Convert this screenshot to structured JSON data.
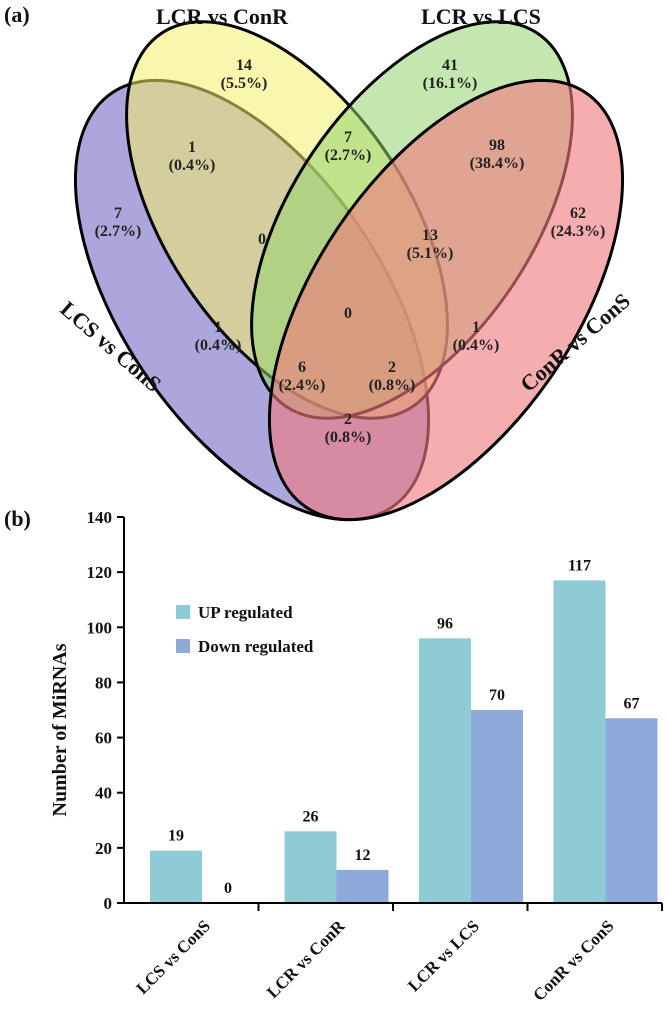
{
  "panels": {
    "a": "(a)",
    "b": "(b)"
  },
  "venn": {
    "sets": [
      {
        "name": "LCS vs ConS",
        "color": "#7b6fc7"
      },
      {
        "name": "LCR vs ConR",
        "color": "#f4ef6b"
      },
      {
        "name": "LCR vs LCS",
        "color": "#93d36f"
      },
      {
        "name": "ConR vs ConS",
        "color": "#f07a80"
      }
    ],
    "regions": [
      {
        "id": "lcr-conr-only",
        "count": "14",
        "pct": "(5.5%)"
      },
      {
        "id": "lcr-lcs-only",
        "count": "41",
        "pct": "(16.1%)"
      },
      {
        "id": "lcs-cons-only",
        "count": "7",
        "pct": "(2.7%)"
      },
      {
        "id": "conr-cons-only",
        "count": "62",
        "pct": "(24.3%)"
      },
      {
        "id": "lcs-lcrconr",
        "count": "1",
        "pct": "(0.4%)"
      },
      {
        "id": "lcrconr-lcrlcs",
        "count": "7",
        "pct": "(2.7%)"
      },
      {
        "id": "lcrlcs-conrcons",
        "count": "98",
        "pct": "(38.4%)"
      },
      {
        "id": "three-left",
        "count": "0",
        "pct": ""
      },
      {
        "id": "three-right",
        "count": "13",
        "pct": "(5.1%)"
      },
      {
        "id": "all-four",
        "count": "0",
        "pct": ""
      },
      {
        "id": "lcs-lcrlcs",
        "count": "1",
        "pct": "(0.4%)"
      },
      {
        "id": "lcrconr-conrcons",
        "count": "1",
        "pct": "(0.4%)"
      },
      {
        "id": "three-bottom-left",
        "count": "6",
        "pct": "(2.4%)"
      },
      {
        "id": "three-bottom-right",
        "count": "2",
        "pct": "(0.8%)"
      },
      {
        "id": "lcs-conrcons",
        "count": "2",
        "pct": "(0.8%)"
      }
    ]
  },
  "chart_data": {
    "type": "bar",
    "categories": [
      "LCS vs ConS",
      "LCR vs ConR",
      "LCR vs LCS",
      "ConR vs ConS"
    ],
    "series": [
      {
        "name": "UP regulated",
        "values": [
          19,
          26,
          96,
          117
        ],
        "color": "#8fcbd5"
      },
      {
        "name": "Down regulated",
        "values": [
          0,
          12,
          70,
          67
        ],
        "color": "#8eaadb"
      }
    ],
    "title": "",
    "xlabel": "",
    "ylabel": "Number of MiRNAs",
    "ylim": [
      0,
      140
    ],
    "yticks": [
      0,
      20,
      40,
      60,
      80,
      100,
      120,
      140
    ],
    "legend": "upper-left"
  }
}
